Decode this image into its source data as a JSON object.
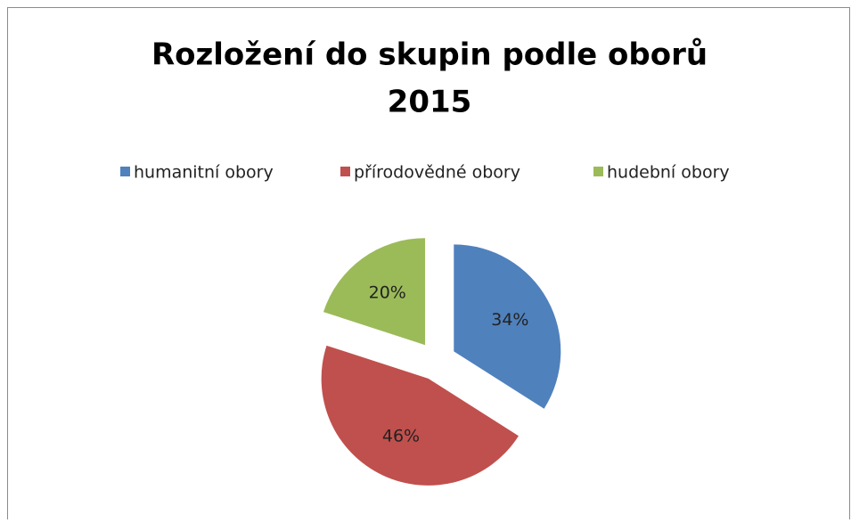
{
  "chart_data": {
    "type": "pie",
    "title": [
      "Rozložení do skupin podle oborů",
      "2015"
    ],
    "categories": [
      "humanitní obory",
      "přírodovědné obory",
      "hudební obory"
    ],
    "values": [
      34,
      46,
      20
    ],
    "value_labels": [
      "34%",
      "46%",
      "20%"
    ],
    "colors": [
      "#4f81bd",
      "#c0504d",
      "#9bbb59"
    ],
    "legend": "top",
    "exploded": true
  }
}
